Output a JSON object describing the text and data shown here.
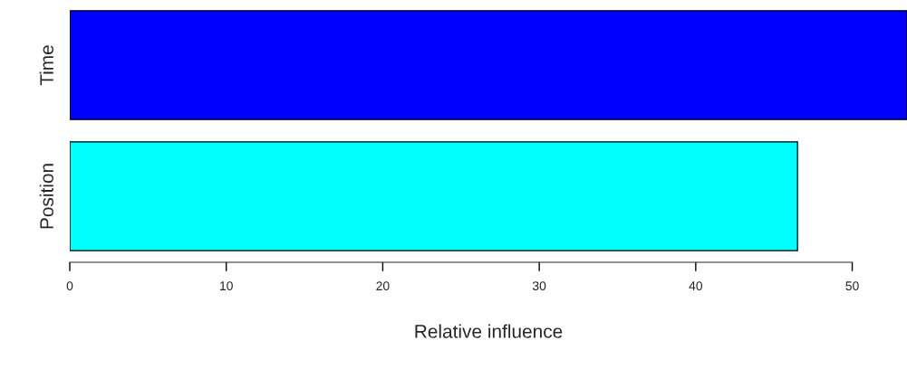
{
  "chart_data": {
    "type": "bar",
    "orientation": "horizontal",
    "xlabel": "Relative influence",
    "categories": [
      "Time",
      "Position"
    ],
    "values": [
      53.5,
      46.5
    ],
    "colors": [
      "#0000ff",
      "#00ffff"
    ],
    "xlim": [
      0,
      53.5
    ],
    "xticks": [
      0,
      10,
      20,
      30,
      40,
      50
    ],
    "grid": false,
    "legend": false
  }
}
